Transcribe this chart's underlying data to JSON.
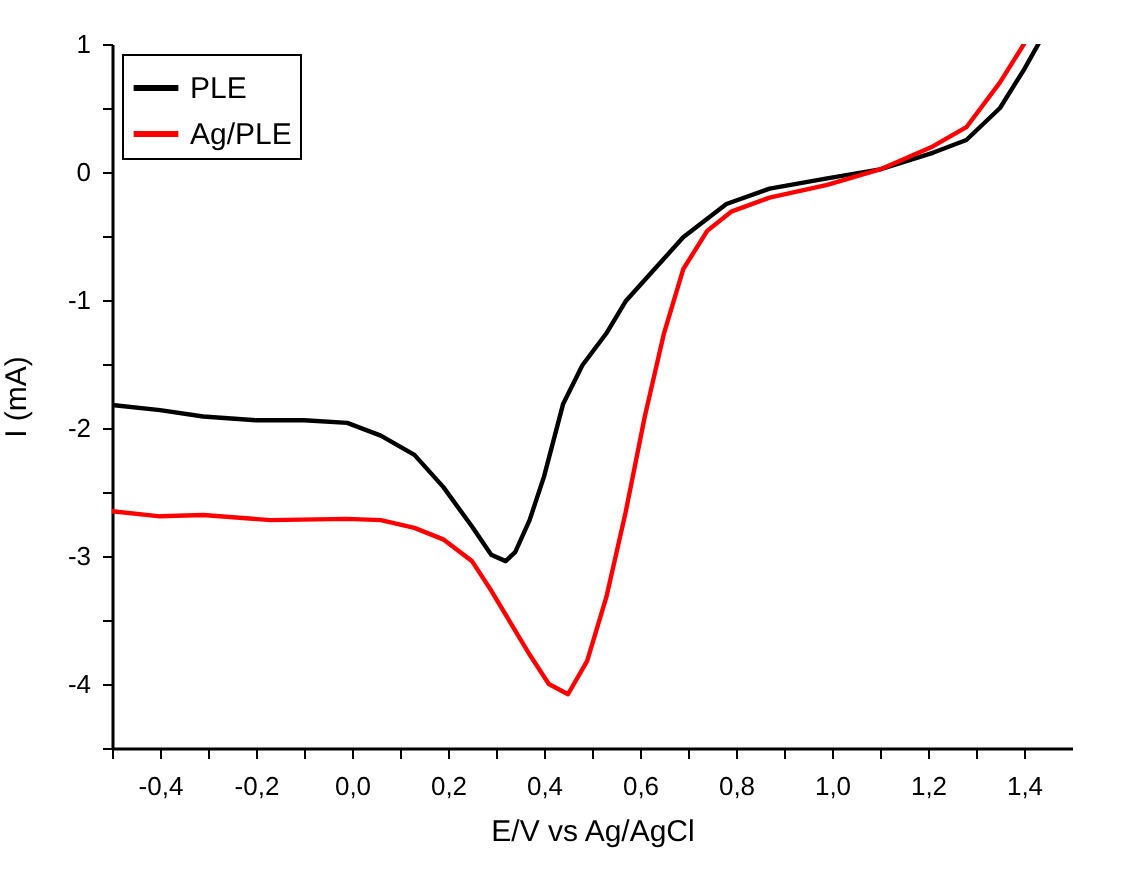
{
  "chart_data": {
    "type": "line",
    "xlabel": "E/V vs Ag/AgCl",
    "ylabel": "I (mA)",
    "xlim": [
      -0.5,
      1.5
    ],
    "ylim": [
      -4.5,
      1
    ],
    "xticks": [
      {
        "value": -0.5,
        "label": null
      },
      {
        "value": -0.4,
        "label": "-0,4"
      },
      {
        "value": -0.3,
        "label": null
      },
      {
        "value": -0.2,
        "label": "-0,2"
      },
      {
        "value": -0.1,
        "label": null
      },
      {
        "value": 0,
        "label": "0,0"
      },
      {
        "value": 0.1,
        "label": null
      },
      {
        "value": 0.2,
        "label": "0,2"
      },
      {
        "value": 0.3,
        "label": null
      },
      {
        "value": 0.4,
        "label": "0,4"
      },
      {
        "value": 0.5,
        "label": null
      },
      {
        "value": 0.6,
        "label": "0,6"
      },
      {
        "value": 0.7,
        "label": null
      },
      {
        "value": 0.8,
        "label": "0,8"
      },
      {
        "value": 0.9,
        "label": null
      },
      {
        "value": 1.0,
        "label": "1,0"
      },
      {
        "value": 1.1,
        "label": null
      },
      {
        "value": 1.2,
        "label": "1,2"
      },
      {
        "value": 1.3,
        "label": null
      },
      {
        "value": 1.4,
        "label": "1,4"
      }
    ],
    "yticks": [
      {
        "value": -4.5,
        "label": null
      },
      -4,
      {
        "value": -3.5,
        "label": null
      },
      -3,
      {
        "value": -2.5,
        "label": null
      },
      -2,
      {
        "value": -1.5,
        "label": null
      },
      -1,
      {
        "value": -0.5,
        "label": null
      },
      0,
      {
        "value": 0.5,
        "label": null
      },
      1
    ],
    "grid": false,
    "legend": "top left",
    "marker": "none",
    "line_style": "solid",
    "series": [
      {
        "name": "PLE",
        "color": "#000000",
        "x": [
          -0.5,
          -0.4,
          -0.31,
          -0.2,
          -0.1,
          -0.01,
          0.06,
          0.13,
          0.19,
          0.25,
          0.29,
          0.32,
          0.34,
          0.37,
          0.4,
          0.44,
          0.48,
          0.53,
          0.57,
          0.63,
          0.69,
          0.78,
          0.87,
          0.99,
          1.1,
          1.21,
          1.28,
          1.35,
          1.4,
          1.43
        ],
        "values": [
          -1.82,
          -1.86,
          -1.91,
          -1.94,
          -1.94,
          -1.96,
          -2.06,
          -2.21,
          -2.46,
          -2.77,
          -2.99,
          -3.04,
          -2.97,
          -2.72,
          -2.38,
          -1.81,
          -1.51,
          -1.26,
          -1.01,
          -0.76,
          -0.51,
          -0.25,
          -0.13,
          -0.05,
          0.02,
          0.15,
          0.25,
          0.5,
          0.8,
          1.0
        ]
      },
      {
        "name": "Ag/PLE",
        "color": "#ff0000",
        "x": [
          -0.5,
          -0.4,
          -0.31,
          -0.17,
          -0.01,
          0.06,
          0.13,
          0.19,
          0.25,
          0.29,
          0.33,
          0.37,
          0.41,
          0.45,
          0.49,
          0.53,
          0.57,
          0.61,
          0.65,
          0.69,
          0.74,
          0.79,
          0.87,
          0.99,
          1.1,
          1.21,
          1.28,
          1.35,
          1.4
        ],
        "values": [
          -2.65,
          -2.69,
          -2.68,
          -2.72,
          -2.71,
          -2.72,
          -2.78,
          -2.87,
          -3.04,
          -3.27,
          -3.52,
          -3.77,
          -4.0,
          -4.08,
          -3.82,
          -3.32,
          -2.66,
          -1.91,
          -1.26,
          -0.76,
          -0.46,
          -0.31,
          -0.2,
          -0.1,
          0.02,
          0.2,
          0.35,
          0.7,
          1.0
        ]
      }
    ]
  }
}
